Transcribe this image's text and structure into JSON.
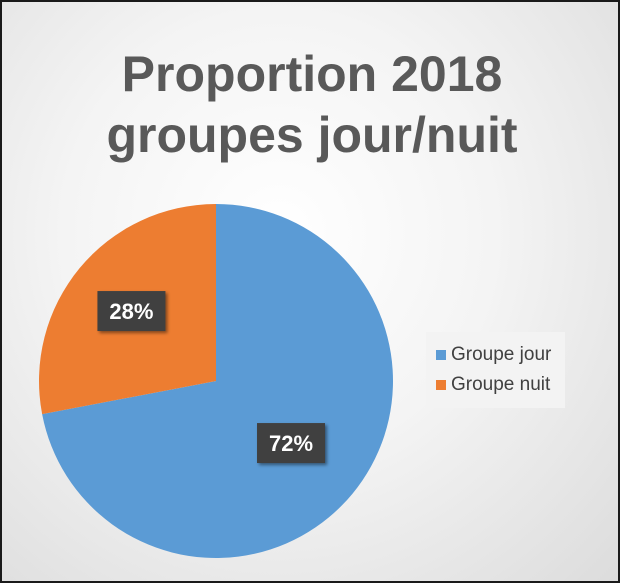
{
  "chart_data": {
    "type": "pie",
    "title_lines": [
      "Proportion 2018",
      "groupes jour/nuit"
    ],
    "categories": [
      "Groupe jour",
      "Groupe nuit"
    ],
    "values": [
      72,
      28
    ],
    "data_labels": [
      "72%",
      "28%"
    ],
    "colors": [
      "#5b9bd5",
      "#ed7d31"
    ],
    "legend_position": "right"
  }
}
